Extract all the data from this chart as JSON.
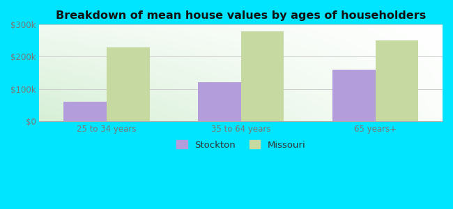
{
  "title": "Breakdown of mean house values by ages of householders",
  "categories": [
    "25 to 34 years",
    "35 to 64 years",
    "65 years+"
  ],
  "stockton_values": [
    60000,
    120000,
    160000
  ],
  "missouri_values": [
    230000,
    280000,
    250000
  ],
  "stockton_color": "#b39ddb",
  "missouri_color": "#c5d9a0",
  "background_color": "#00e5ff",
  "ylim": [
    0,
    300000
  ],
  "yticks": [
    0,
    100000,
    200000,
    300000
  ],
  "ytick_labels": [
    "$0",
    "$100k",
    "$200k",
    "$300k"
  ],
  "bar_width": 0.32,
  "legend_labels": [
    "Stockton",
    "Missouri"
  ],
  "title_fontsize": 11.5,
  "tick_fontsize": 8.5,
  "legend_fontsize": 9.5,
  "grid_color": "#cccccc",
  "tick_color": "#777777"
}
